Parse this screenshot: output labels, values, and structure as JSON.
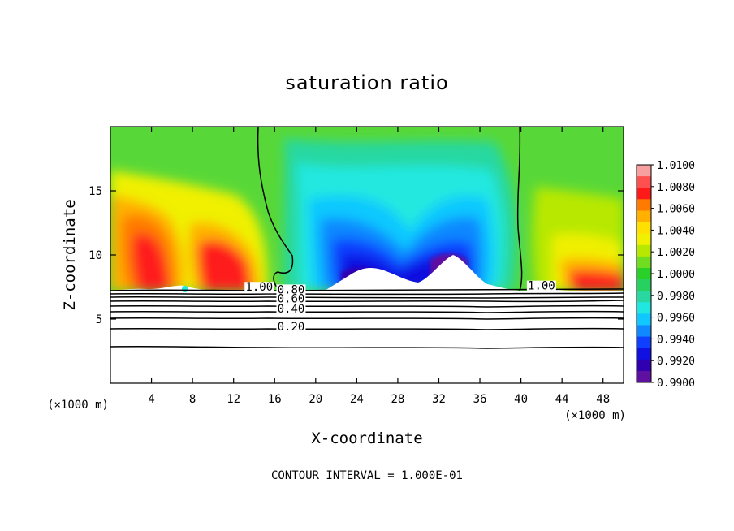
{
  "chart_data": {
    "type": "heatmap",
    "title": "saturation ratio",
    "xlabel": "X-coordinate",
    "ylabel": "Z-coordinate",
    "x_unit": "(×1000 m)",
    "xlim": [
      0,
      50
    ],
    "ylim": [
      0,
      20
    ],
    "x_ticks": [
      4,
      8,
      12,
      16,
      20,
      24,
      28,
      32,
      36,
      40,
      44,
      48
    ],
    "y_ticks": [
      5,
      10,
      15
    ],
    "colorbar": {
      "min": 0.99,
      "max": 1.01,
      "labels": [
        "1.0100",
        "1.0080",
        "1.0060",
        "1.0040",
        "1.0020",
        "1.0000",
        "0.9980",
        "0.9960",
        "0.9940",
        "0.9920",
        "0.9900"
      ],
      "colors": [
        "#f8a0a0",
        "#ff5050",
        "#ff1a1a",
        "#ff7a00",
        "#ffb000",
        "#ffe000",
        "#f0f000",
        "#b8e800",
        "#70dd20",
        "#28d028",
        "#28d060",
        "#28d8a0",
        "#20e8e0",
        "#10c8ff",
        "#1088ff",
        "#1040ff",
        "#1010e0",
        "#3000b0",
        "#6010a0"
      ]
    },
    "contour_labels": [
      {
        "text": "1.00",
        "x": 14.5,
        "z": 7.2
      },
      {
        "text": "0.80",
        "x": 17.6,
        "z": 7.0
      },
      {
        "text": "0.60",
        "x": 17.6,
        "z": 6.3
      },
      {
        "text": "0.40",
        "x": 17.6,
        "z": 5.5
      },
      {
        "text": "0.20",
        "x": 17.6,
        "z": 4.1
      },
      {
        "text": "1.00",
        "x": 42.0,
        "z": 7.3
      }
    ],
    "footer": "CONTOUR INTERVAL = 1.000E-01"
  }
}
